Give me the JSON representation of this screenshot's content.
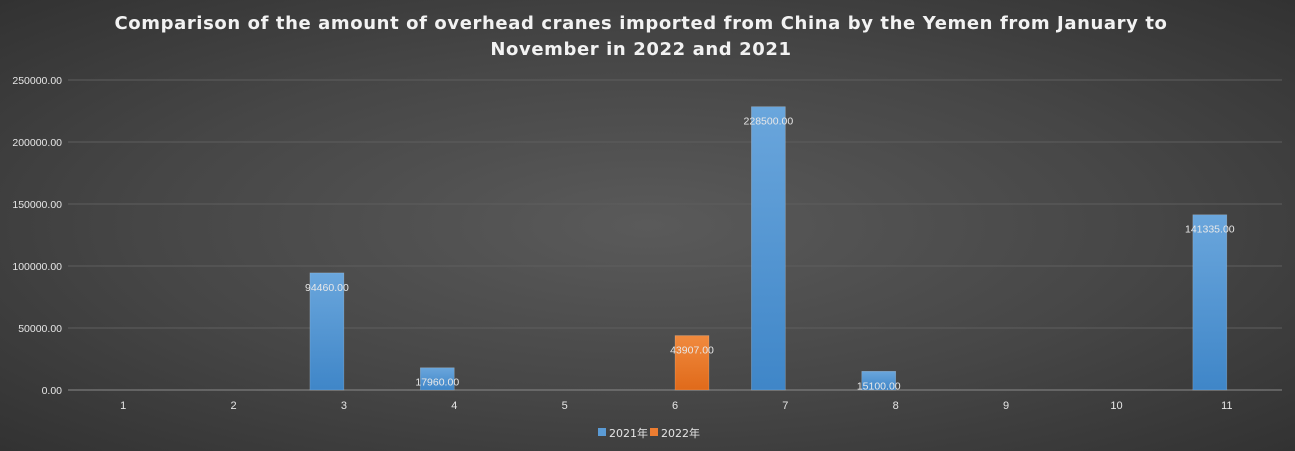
{
  "chart_data": {
    "type": "bar",
    "title": "Comparison of the amount of overhead cranes imported from China by the Yemen from January to November in 2022 and 2021",
    "title_lines": [
      "Comparison of the amount of overhead cranes imported from China by the Yemen from January to",
      "November in 2022 and 2021"
    ],
    "categories": [
      "1",
      "2",
      "3",
      "4",
      "5",
      "6",
      "7",
      "8",
      "9",
      "10",
      "11"
    ],
    "series": [
      {
        "name": "2021年",
        "color": "#5b9bd5",
        "values": [
          0,
          0,
          94460.0,
          17960.0,
          0,
          0,
          228500.0,
          15100.0,
          0,
          0,
          141335.0
        ],
        "labels": [
          "",
          "",
          "94460.00",
          "17960.00",
          "",
          "",
          "228500.00",
          "15100.00",
          "",
          "",
          "141335.00"
        ]
      },
      {
        "name": "2022年",
        "color": "#ed7d31",
        "values": [
          0,
          0,
          0,
          0,
          0,
          43907.0,
          0,
          0,
          0,
          0,
          0
        ],
        "labels": [
          "",
          "",
          "",
          "",
          "",
          "43907.00",
          "",
          "",
          "",
          "",
          ""
        ]
      }
    ],
    "y_ticks": [
      "0.00",
      "50000.00",
      "100000.00",
      "150000.00",
      "200000.00",
      "250000.00"
    ],
    "ylim": [
      0,
      250000
    ],
    "xlabel": "",
    "ylabel": "",
    "grid": true,
    "legend_position": "bottom"
  }
}
